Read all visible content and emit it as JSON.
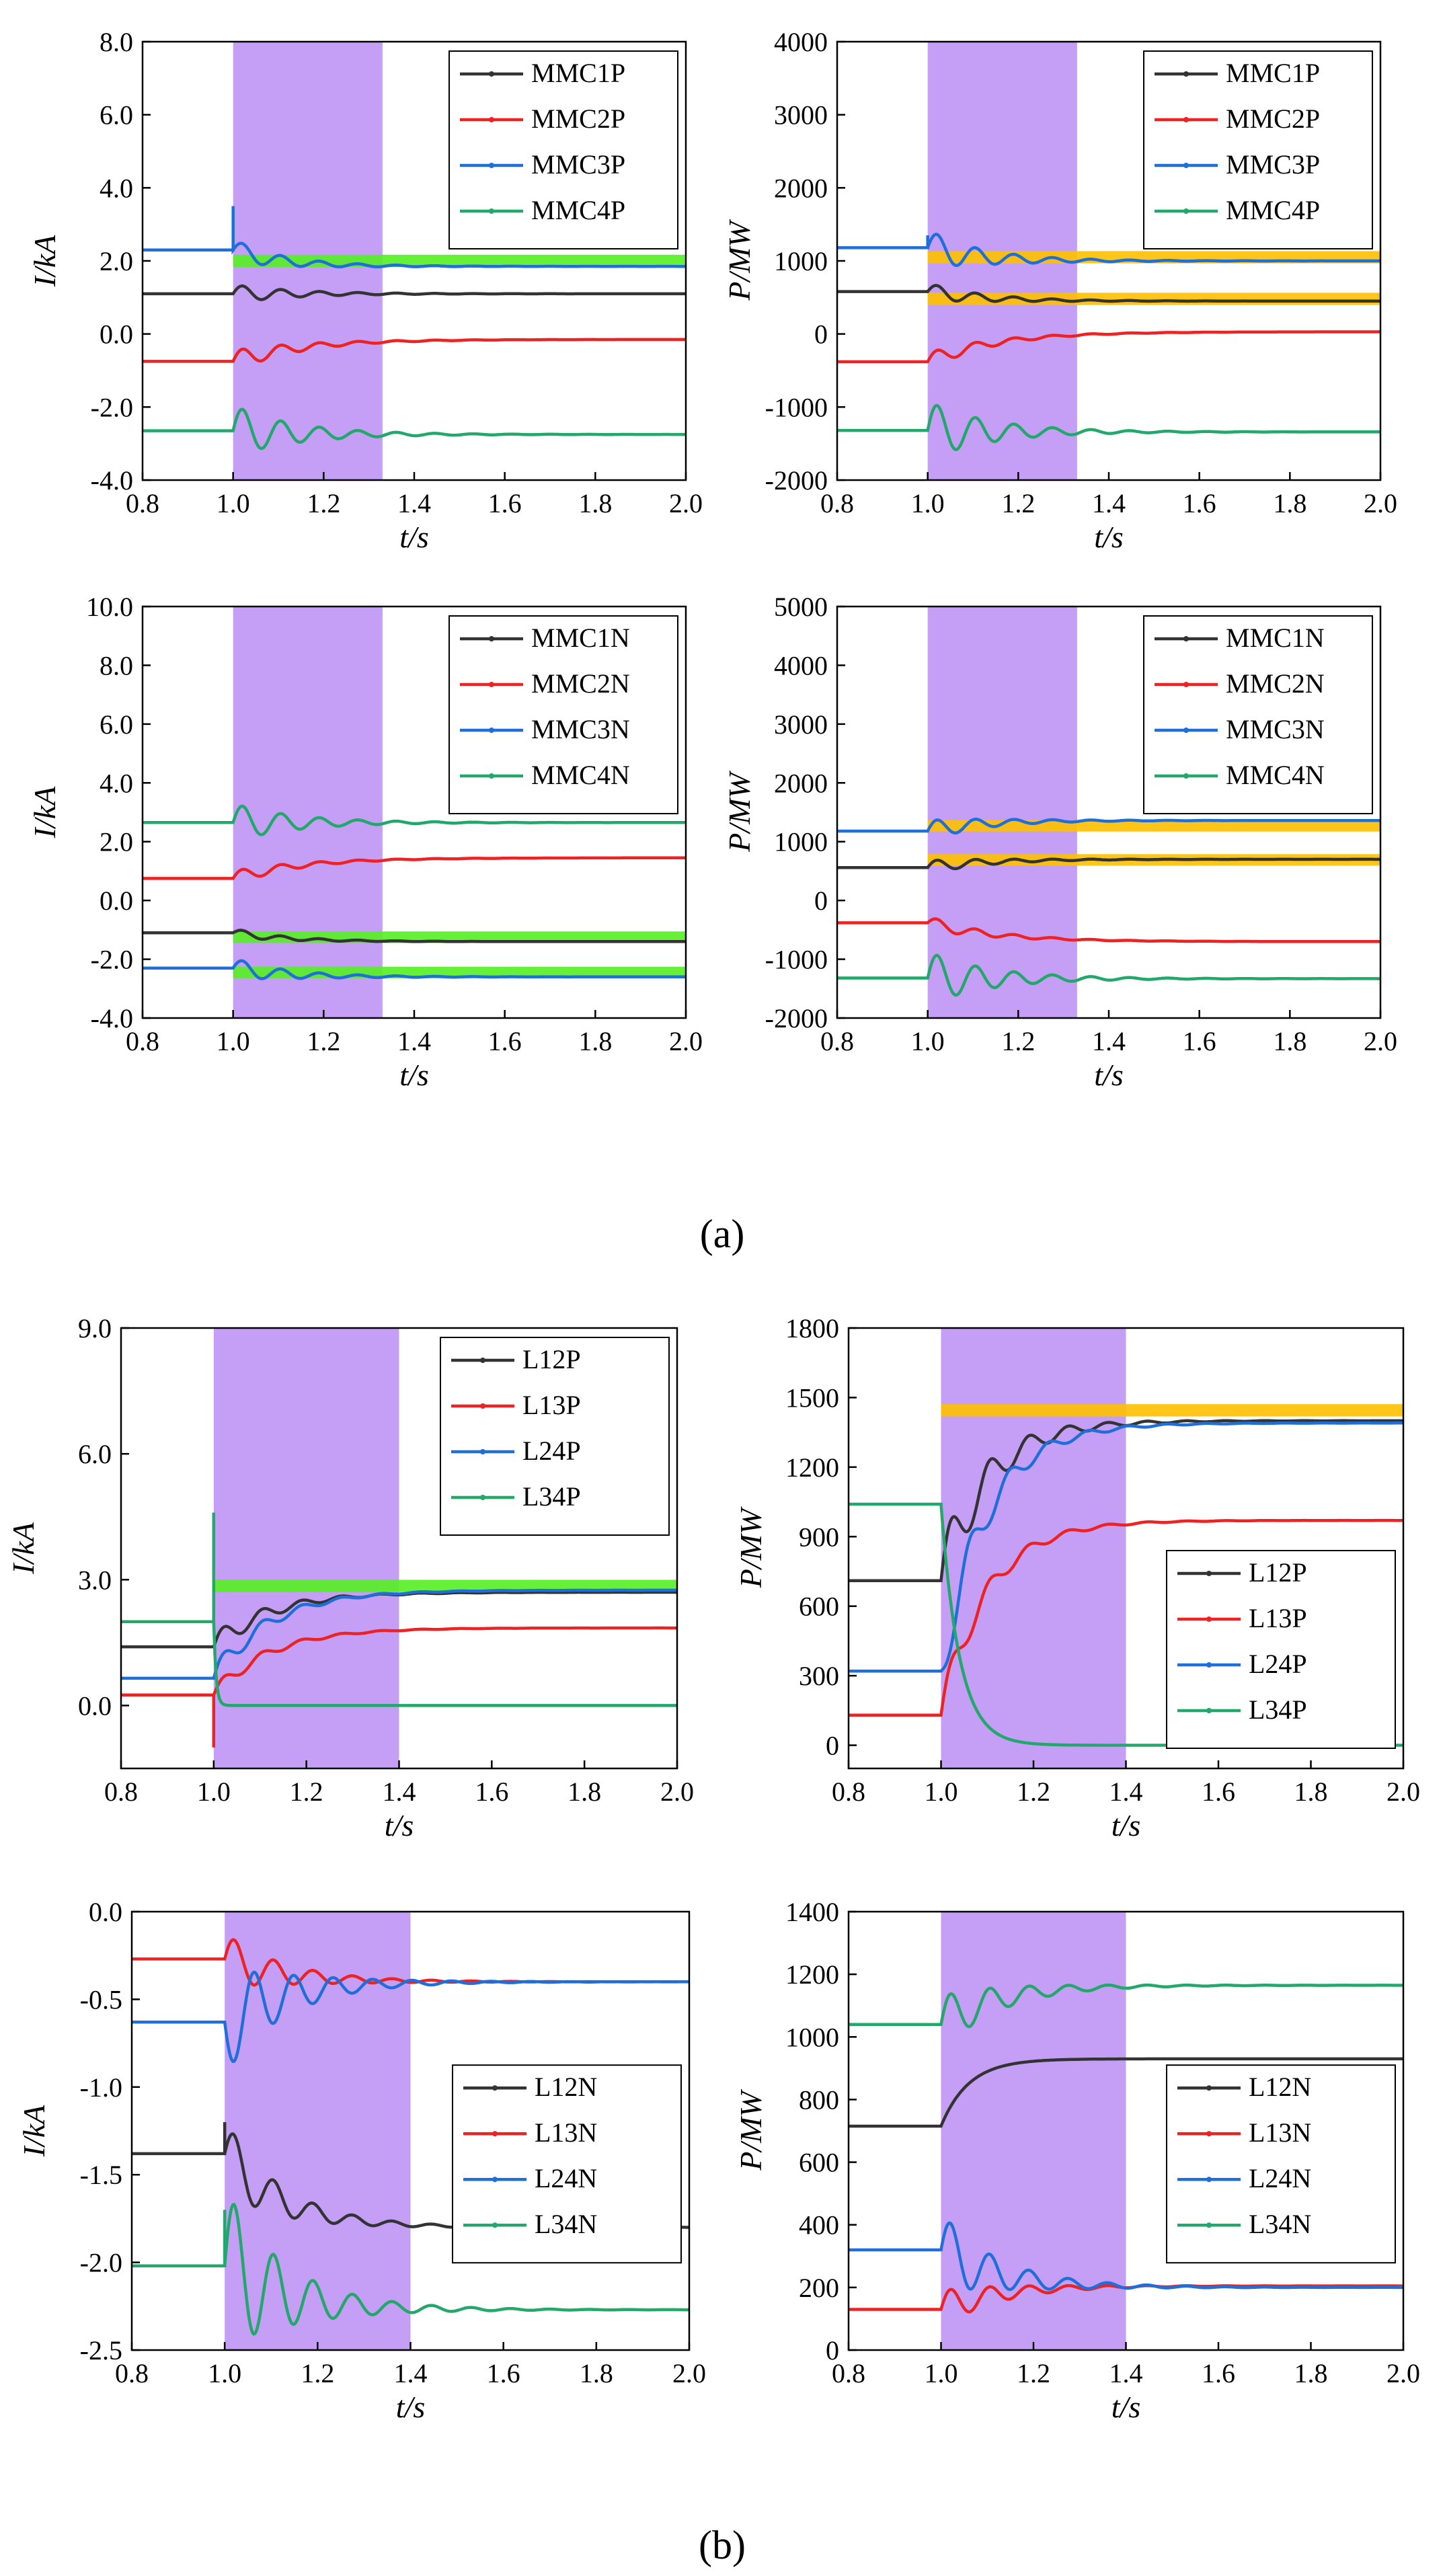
{
  "figure": {
    "captions": [
      "(a)",
      "(b)"
    ]
  },
  "colors": {
    "black": "#333333",
    "red": "#ee2222",
    "blue": "#1e6fd9",
    "green": "#22a86a",
    "shade": "#c49ff5",
    "highlight_green": "#55ee22",
    "highlight_yellow": "#ffc000"
  },
  "chart_data": [
    {
      "id": "a1",
      "type": "line",
      "xlabel": "t/s",
      "ylabel": "I/kA",
      "xlim": [
        0.8,
        2.0
      ],
      "ylim": [
        -4.0,
        8.0
      ],
      "xticks": [
        "0.8",
        "1.0",
        "1.2",
        "1.4",
        "1.6",
        "1.8",
        "2.0"
      ],
      "yticks": [
        "-4.0",
        "-2.0",
        "0.0",
        "2.0",
        "4.0",
        "6.0",
        "8.0"
      ],
      "shade": [
        1.0,
        1.33
      ],
      "highlights": [
        {
          "y": 2.0,
          "color": "green"
        }
      ],
      "legend": {
        "position": "top-right"
      },
      "series": [
        {
          "name": "MMC1P",
          "color": "black",
          "pre": 1.1,
          "post": 1.1,
          "osc": 0.25,
          "decay": 0.12,
          "spike": 0
        },
        {
          "name": "MMC2P",
          "color": "red",
          "pre": -0.75,
          "post": -0.15,
          "osc": 0.3,
          "decay": 0.15,
          "spike": 0
        },
        {
          "name": "MMC3P",
          "color": "blue",
          "pre": 2.3,
          "post": 1.85,
          "osc": 0.3,
          "decay": 0.1,
          "spike": 3.5
        },
        {
          "name": "MMC4P",
          "color": "green",
          "pre": -2.65,
          "post": -2.75,
          "osc": 0.7,
          "decay": 0.12,
          "spike": 0
        }
      ]
    },
    {
      "id": "a2",
      "type": "line",
      "xlabel": "t/s",
      "ylabel": "P/MW",
      "xlim": [
        0.8,
        2.0
      ],
      "ylim": [
        -2000,
        4000
      ],
      "xticks": [
        "0.8",
        "1.0",
        "1.2",
        "1.4",
        "1.6",
        "1.8",
        "2.0"
      ],
      "yticks": [
        "-2000",
        "-1000",
        "0",
        "1000",
        "2000",
        "3000",
        "4000"
      ],
      "shade": [
        1.0,
        1.33
      ],
      "highlights": [
        {
          "y": 1050,
          "color": "yellow"
        },
        {
          "y": 480,
          "color": "yellow"
        }
      ],
      "legend": {
        "position": "top-right"
      },
      "series": [
        {
          "name": "MMC1P",
          "color": "black",
          "pre": 580,
          "post": 450,
          "osc": 120,
          "decay": 0.12,
          "spike": 0
        },
        {
          "name": "MMC2P",
          "color": "red",
          "pre": -380,
          "post": 30,
          "osc": 120,
          "decay": 0.15,
          "spike": 0
        },
        {
          "name": "MMC3P",
          "color": "blue",
          "pre": 1180,
          "post": 1000,
          "osc": 250,
          "decay": 0.1,
          "spike": 1350
        },
        {
          "name": "MMC4P",
          "color": "green",
          "pre": -1320,
          "post": -1340,
          "osc": 400,
          "decay": 0.12,
          "spike": 0
        }
      ]
    },
    {
      "id": "a3",
      "type": "line",
      "xlabel": "t/s",
      "ylabel": "I/kA",
      "xlim": [
        0.8,
        2.0
      ],
      "ylim": [
        -4.0,
        10.0
      ],
      "xticks": [
        "0.8",
        "1.0",
        "1.2",
        "1.4",
        "1.6",
        "1.8",
        "2.0"
      ],
      "yticks": [
        "-4.0",
        "-2.0",
        "0.0",
        "2.0",
        "4.0",
        "6.0",
        "8.0",
        "10.0"
      ],
      "shade": [
        1.0,
        1.33
      ],
      "highlights": [
        {
          "y": -1.25,
          "color": "green"
        },
        {
          "y": -2.45,
          "color": "green"
        }
      ],
      "legend": {
        "position": "top-right"
      },
      "series": [
        {
          "name": "MMC1N",
          "color": "black",
          "pre": -1.1,
          "post": -1.4,
          "osc": 0.15,
          "decay": 0.12,
          "spike": 0
        },
        {
          "name": "MMC2N",
          "color": "red",
          "pre": 0.75,
          "post": 1.45,
          "osc": 0.25,
          "decay": 0.15,
          "spike": 0
        },
        {
          "name": "MMC3N",
          "color": "blue",
          "pre": -2.3,
          "post": -2.6,
          "osc": 0.35,
          "decay": 0.1,
          "spike": 0
        },
        {
          "name": "MMC4N",
          "color": "green",
          "pre": 2.65,
          "post": 2.65,
          "osc": 0.65,
          "decay": 0.12,
          "spike": 0
        }
      ]
    },
    {
      "id": "a4",
      "type": "line",
      "xlabel": "t/s",
      "ylabel": "P/MW",
      "xlim": [
        0.8,
        2.0
      ],
      "ylim": [
        -2000,
        5000
      ],
      "xticks": [
        "0.8",
        "1.0",
        "1.2",
        "1.4",
        "1.6",
        "1.8",
        "2.0"
      ],
      "yticks": [
        "-2000",
        "-1000",
        "0",
        "1000",
        "2000",
        "3000",
        "4000",
        "5000"
      ],
      "shade": [
        1.0,
        1.33
      ],
      "highlights": [
        {
          "y": 1270,
          "color": "yellow"
        },
        {
          "y": 690,
          "color": "yellow"
        }
      ],
      "legend": {
        "position": "top-right"
      },
      "series": [
        {
          "name": "MMC1N",
          "color": "black",
          "pre": 560,
          "post": 700,
          "osc": 120,
          "decay": 0.12,
          "spike": 0
        },
        {
          "name": "MMC2N",
          "color": "red",
          "pre": -380,
          "post": -700,
          "osc": 120,
          "decay": 0.15,
          "spike": 0
        },
        {
          "name": "MMC3N",
          "color": "blue",
          "pre": 1180,
          "post": 1360,
          "osc": 180,
          "decay": 0.1,
          "spike": 0
        },
        {
          "name": "MMC4N",
          "color": "green",
          "pre": -1320,
          "post": -1330,
          "osc": 450,
          "decay": 0.12,
          "spike": 0
        }
      ]
    },
    {
      "id": "b1",
      "type": "line",
      "xlabel": "t/s",
      "ylabel": "I/kA",
      "xlim": [
        0.8,
        2.0
      ],
      "ylim": [
        -1.5,
        9.0
      ],
      "xticks": [
        "0.8",
        "1.0",
        "1.2",
        "1.4",
        "1.6",
        "1.8",
        "2.0"
      ],
      "yticks": [
        "0.0",
        "3.0",
        "6.0",
        "9.0"
      ],
      "shade": [
        1.0,
        1.4
      ],
      "highlights": [
        {
          "y": 2.85,
          "color": "green"
        }
      ],
      "legend": {
        "position": "top-right"
      },
      "series": [
        {
          "name": "L12P",
          "color": "black",
          "pre": 1.4,
          "post": 2.7,
          "osc": 0.3,
          "decay": 0.12,
          "spike": 0
        },
        {
          "name": "L13P",
          "color": "red",
          "pre": 0.25,
          "post": 1.85,
          "osc": 0.2,
          "decay": 0.12,
          "spike": -1.0
        },
        {
          "name": "L24P",
          "color": "blue",
          "pre": 0.65,
          "post": 2.75,
          "osc": 0.3,
          "decay": 0.12,
          "spike": 0
        },
        {
          "name": "L34P",
          "color": "green",
          "pre": 2.0,
          "post": 0.0,
          "osc": 0,
          "decay": 0.005,
          "spike": 4.6
        }
      ]
    },
    {
      "id": "b2",
      "type": "line",
      "xlabel": "t/s",
      "ylabel": "P/MW",
      "xlim": [
        0.8,
        2.0
      ],
      "ylim": [
        -100,
        1800
      ],
      "xticks": [
        "0.8",
        "1.0",
        "1.2",
        "1.4",
        "1.6",
        "1.8",
        "2.0"
      ],
      "yticks": [
        "0",
        "300",
        "600",
        "900",
        "1200",
        "1500",
        "1800"
      ],
      "shade": [
        1.0,
        1.4
      ],
      "highlights": [
        {
          "y": 1445,
          "color": "yellow"
        }
      ],
      "legend": {
        "position": "bottom-right"
      },
      "series": [
        {
          "name": "L12P",
          "color": "black",
          "pre": 710,
          "post": 1400,
          "osc": 150,
          "decay": 0.1,
          "spike": 0
        },
        {
          "name": "L13P",
          "color": "red",
          "pre": 130,
          "post": 970,
          "osc": 80,
          "decay": 0.1,
          "spike": 0
        },
        {
          "name": "L24P",
          "color": "blue",
          "pre": 320,
          "post": 1390,
          "osc": -120,
          "decay": 0.1,
          "spike": 0
        },
        {
          "name": "L34P",
          "color": "green",
          "pre": 1040,
          "post": 0,
          "osc": 0,
          "decay": 0.04,
          "spike": 0
        }
      ]
    },
    {
      "id": "b3",
      "type": "line",
      "xlabel": "t/s",
      "ylabel": "I/kA",
      "xlim": [
        0.8,
        2.0
      ],
      "ylim": [
        -2.5,
        0.0
      ],
      "xticks": [
        "0.8",
        "1.0",
        "1.2",
        "1.4",
        "1.6",
        "1.8",
        "2.0"
      ],
      "yticks": [
        "-2.5",
        "-2.0",
        "-1.5",
        "-1.0",
        "-0.5",
        "0.0"
      ],
      "shade": [
        1.0,
        1.4
      ],
      "highlights": [],
      "legend": {
        "position": "center-right"
      },
      "series": [
        {
          "name": "L12N",
          "color": "black",
          "pre": -1.38,
          "post": -1.8,
          "osc": 0.2,
          "decay": 0.12,
          "spike": -1.2
        },
        {
          "name": "L13N",
          "color": "red",
          "pre": -0.27,
          "post": -0.4,
          "osc": 0.15,
          "decay": 0.12,
          "spike": 0
        },
        {
          "name": "L24N",
          "color": "blue",
          "pre": -0.63,
          "post": -0.4,
          "osc": -0.3,
          "decay": 0.12,
          "spike": 0
        },
        {
          "name": "L34N",
          "color": "green",
          "pre": -2.02,
          "post": -2.27,
          "osc": 0.45,
          "decay": 0.12,
          "spike": -1.7
        }
      ]
    },
    {
      "id": "b4",
      "type": "line",
      "xlabel": "t/s",
      "ylabel": "P/MW",
      "xlim": [
        0.8,
        2.0
      ],
      "ylim": [
        0,
        1400
      ],
      "xticks": [
        "0.8",
        "1.0",
        "1.2",
        "1.4",
        "1.6",
        "1.8",
        "2.0"
      ],
      "yticks": [
        "0",
        "200",
        "400",
        "600",
        "800",
        "1000",
        "1200",
        "1400"
      ],
      "shade": [
        1.0,
        1.4
      ],
      "highlights": [],
      "legend": {
        "position": "center-right"
      },
      "series": [
        {
          "name": "L12N",
          "color": "black",
          "pre": 715,
          "post": 930,
          "osc": 0,
          "decay": 0.06,
          "spike": 0
        },
        {
          "name": "L13N",
          "color": "red",
          "pre": 130,
          "post": 205,
          "osc": 60,
          "decay": 0.12,
          "spike": 0
        },
        {
          "name": "L24N",
          "color": "blue",
          "pre": 320,
          "post": 200,
          "osc": 120,
          "decay": 0.12,
          "spike": 0
        },
        {
          "name": "L34N",
          "color": "green",
          "pre": 1040,
          "post": 1165,
          "osc": 90,
          "decay": 0.12,
          "spike": 0
        }
      ]
    }
  ]
}
